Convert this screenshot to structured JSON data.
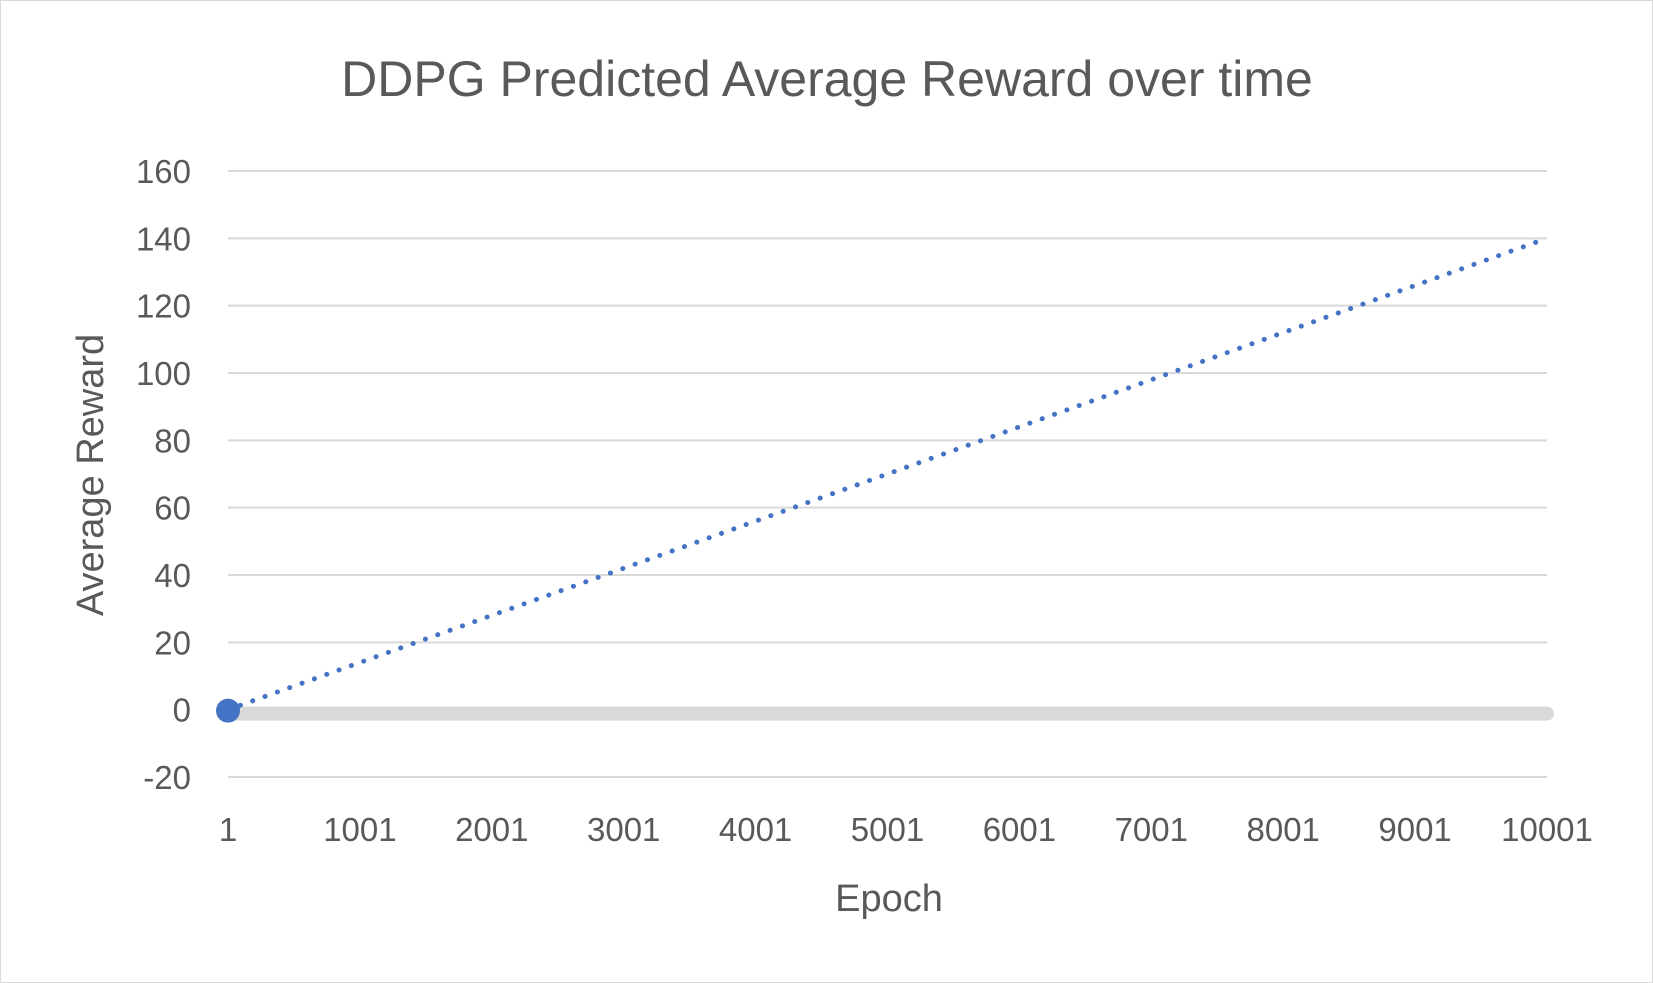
{
  "chart_data": {
    "type": "line",
    "title": "DDPG Predicted Average Reward over time",
    "xlabel": "Epoch",
    "ylabel": "Average Reward",
    "x_ticks": [
      "1",
      "1001",
      "2001",
      "3001",
      "4001",
      "5001",
      "6001",
      "7001",
      "8001",
      "9001",
      "10001"
    ],
    "x_range": [
      1,
      10001
    ],
    "y_ticks": [
      "-20",
      "0",
      "20",
      "40",
      "60",
      "80",
      "100",
      "120",
      "140",
      "160"
    ],
    "ylim": [
      -20,
      160
    ],
    "grid": true,
    "legend": "none",
    "series": [
      {
        "style": "marker",
        "x": [
          1,
          10001
        ],
        "y": [
          0,
          0
        ]
      },
      {
        "style": "dotted-trendline",
        "x": [
          1,
          10001
        ],
        "y": [
          0,
          140
        ]
      }
    ],
    "colors": {
      "series": "#4472C4",
      "grid": "#d9d9d9",
      "text": "#595959",
      "data_band": "#d9d9d9"
    }
  }
}
